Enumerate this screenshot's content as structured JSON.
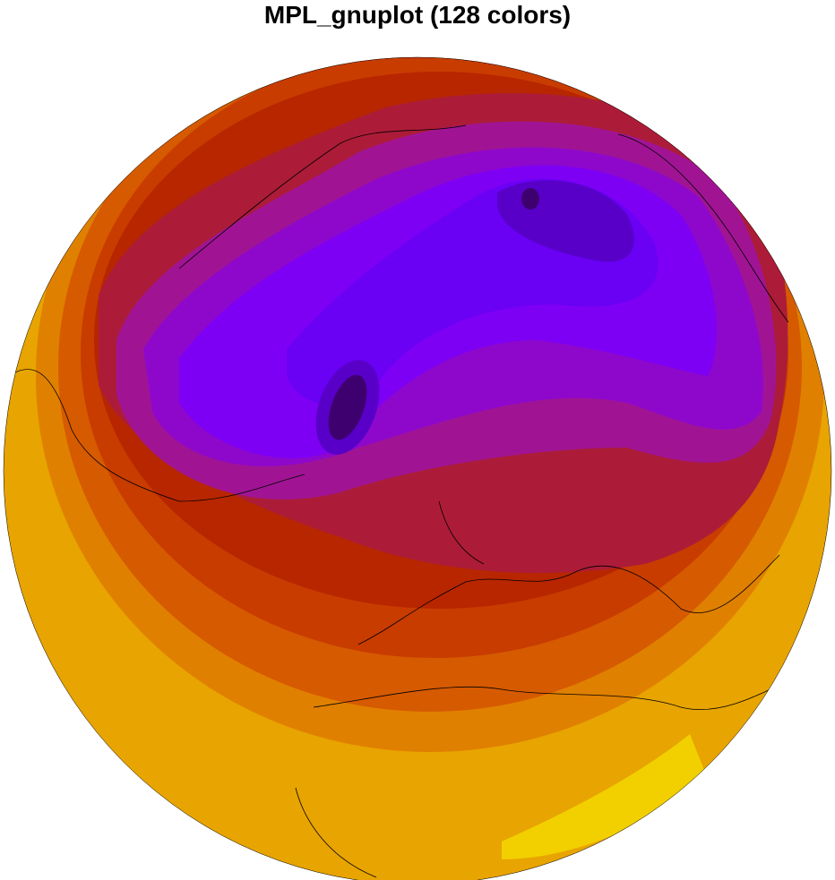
{
  "title": "MPL_gnuplot (128 colors)",
  "map": {
    "projection": "orthographic",
    "colormap": "MPL_gnuplot",
    "num_colors": 128,
    "fill_levels": [
      "#f2d000",
      "#e8a400",
      "#e08000",
      "#d65a00",
      "#c83c00",
      "#b82600",
      "#ac1c38",
      "#a01494",
      "#8e08cc",
      "#7e00f4",
      "#6a00f4",
      "#5800c8",
      "#3e006e"
    ],
    "coastline_color": "#000000"
  }
}
